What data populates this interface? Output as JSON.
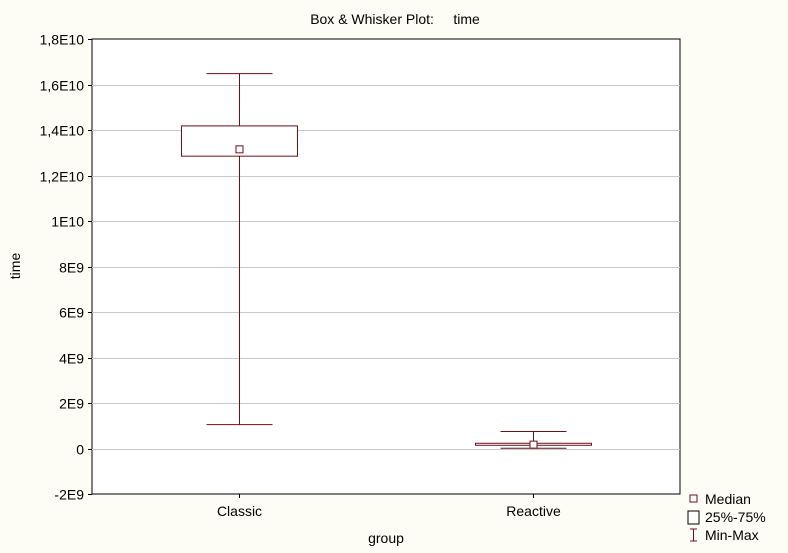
{
  "chart_data": {
    "type": "boxplot",
    "title": "Box & Whisker Plot:     time",
    "xlabel": "group",
    "ylabel": "time",
    "ylim": [
      -2000000000,
      18000000000
    ],
    "yticks": [
      -2000000000,
      0,
      2000000000,
      4000000000,
      6000000000,
      8000000000,
      10000000000,
      12000000000,
      14000000000,
      16000000000,
      18000000000
    ],
    "ytick_labels": [
      "-2E9",
      "0",
      "2E9",
      "4E9",
      "6E9",
      "8E9",
      "1E10",
      "1,2E10",
      "1,4E10",
      "1,6E10",
      "1,8E10"
    ],
    "categories": [
      "Classic",
      "Reactive"
    ],
    "boxes": [
      {
        "category": "Classic",
        "min": 1050000000,
        "q1": 12850000000,
        "median": 13150000000,
        "q3": 14180000000,
        "max": 16480000000
      },
      {
        "category": "Reactive",
        "min": 10000000,
        "q1": 170000000,
        "median": 170000000,
        "q3": 230000000,
        "max": 750000000
      }
    ],
    "grid": true,
    "legend_position": "bottom-right",
    "legend": [
      "Median",
      "25%-75%",
      "Min-Max"
    ],
    "colors": {
      "series": "#6b0f1a",
      "grid": "#c8c8c8",
      "background": "#fdfdf5",
      "plot_area": "#ffffff"
    }
  }
}
